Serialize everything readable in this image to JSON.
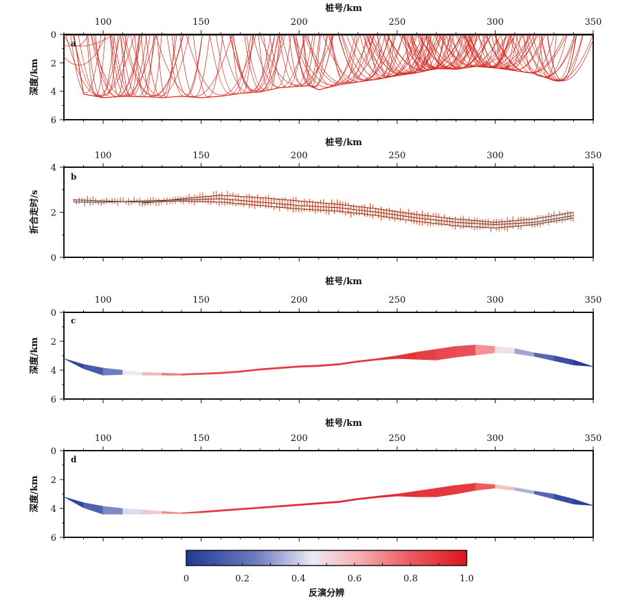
{
  "chart_data": [
    {
      "panel": "a",
      "type": "line",
      "xlabel": "桩号/km",
      "ylabel": "深度/km",
      "xticks": [
        "100",
        "150",
        "200",
        "250",
        "300",
        "350"
      ],
      "yticks": [
        "0",
        "2",
        "4",
        "6"
      ],
      "xlim": [
        80,
        350
      ],
      "ylim": [
        0,
        6
      ],
      "reflector_depth": {
        "x": [
          85,
          90,
          98,
          100,
          110,
          125,
          130,
          140,
          150,
          160,
          170,
          180,
          190,
          200,
          205,
          210,
          220,
          230,
          240,
          250,
          260,
          270,
          280,
          290,
          300,
          310,
          320,
          330,
          333
        ],
        "y": [
          0.0,
          4.2,
          4.4,
          4.45,
          4.35,
          4.4,
          4.45,
          4.35,
          4.45,
          4.35,
          4.15,
          4.05,
          3.75,
          3.65,
          3.6,
          3.9,
          3.55,
          3.35,
          3.15,
          2.9,
          2.7,
          2.4,
          2.45,
          2.25,
          2.35,
          2.55,
          2.75,
          3.25,
          3.3
        ]
      }
    },
    {
      "panel": "b",
      "type": "line",
      "xlabel": "桩号/km",
      "ylabel": "折合走时/s",
      "xticks": [
        "100",
        "150",
        "200",
        "250",
        "300",
        "350"
      ],
      "yticks": [
        "0",
        "2",
        "4"
      ],
      "xlim": [
        80,
        350
      ],
      "ylim": [
        0,
        4
      ],
      "traveltime_curves": [
        {
          "x": [
            85,
            100,
            120,
            140,
            160,
            180,
            200,
            220,
            240,
            260,
            280,
            300,
            320,
            340
          ],
          "y": [
            2.55,
            2.5,
            2.45,
            2.5,
            2.45,
            2.3,
            2.15,
            2.05,
            1.85,
            1.6,
            1.4,
            1.3,
            1.45,
            1.75
          ]
        },
        {
          "x": [
            85,
            100,
            120,
            140,
            160,
            180,
            200,
            220,
            240,
            260,
            280,
            300,
            320,
            340
          ],
          "y": [
            2.45,
            2.45,
            2.5,
            2.55,
            2.6,
            2.45,
            2.3,
            2.2,
            2.0,
            1.75,
            1.55,
            1.45,
            1.55,
            1.85
          ]
        },
        {
          "x": [
            120,
            140,
            160,
            180,
            200,
            220,
            240,
            260,
            280,
            300,
            320,
            340
          ],
          "y": [
            2.4,
            2.6,
            2.75,
            2.65,
            2.5,
            2.35,
            2.15,
            1.9,
            1.7,
            1.55,
            1.7,
            2.0
          ]
        }
      ]
    },
    {
      "panel": "c",
      "type": "area",
      "xlabel": "桩号/km",
      "ylabel": "深度/km",
      "xticks": [
        "100",
        "150",
        "200",
        "250",
        "300",
        "350"
      ],
      "yticks": [
        "0",
        "2",
        "4",
        "6"
      ],
      "xlim": [
        80,
        350
      ],
      "ylim": [
        0,
        6
      ],
      "interface": {
        "x": [
          80,
          90,
          100,
          110,
          120,
          130,
          140,
          150,
          160,
          170,
          180,
          190,
          200,
          210,
          220,
          230,
          240,
          250,
          260,
          270,
          280,
          290,
          300,
          310,
          320,
          330,
          340,
          350
        ],
        "top": [
          3.2,
          3.6,
          3.85,
          4.0,
          4.15,
          4.2,
          4.25,
          4.2,
          4.15,
          4.05,
          3.9,
          3.8,
          3.7,
          3.65,
          3.55,
          3.35,
          3.2,
          3.0,
          2.75,
          2.55,
          2.35,
          2.25,
          2.35,
          2.5,
          2.8,
          3.0,
          3.3,
          3.75
        ],
        "bottom": [
          3.2,
          3.9,
          4.35,
          4.3,
          4.35,
          4.35,
          4.35,
          4.3,
          4.25,
          4.15,
          4.0,
          3.9,
          3.8,
          3.75,
          3.65,
          3.45,
          3.3,
          3.2,
          3.25,
          3.3,
          3.1,
          2.95,
          2.8,
          2.85,
          3.05,
          3.35,
          3.65,
          3.75
        ],
        "resolution": [
          0.0,
          0.1,
          0.15,
          0.35,
          0.55,
          0.65,
          0.8,
          0.85,
          0.85,
          0.88,
          0.9,
          0.9,
          0.9,
          0.92,
          0.9,
          0.92,
          0.9,
          0.92,
          0.9,
          0.85,
          0.85,
          0.8,
          0.55,
          0.4,
          0.25,
          0.1,
          0.05,
          0.0
        ]
      }
    },
    {
      "panel": "d",
      "type": "area",
      "xlabel": "桩号/km",
      "ylabel": "深度/km",
      "xticks": [
        "100",
        "150",
        "200",
        "250",
        "300",
        "350"
      ],
      "yticks": [
        "0",
        "2",
        "4",
        "6"
      ],
      "xlim": [
        80,
        350
      ],
      "ylim": [
        0,
        6
      ],
      "interface": {
        "x": [
          80,
          90,
          100,
          110,
          120,
          130,
          140,
          150,
          160,
          170,
          180,
          190,
          200,
          210,
          220,
          230,
          240,
          250,
          260,
          270,
          280,
          290,
          300,
          310,
          320,
          330,
          340,
          350
        ],
        "top": [
          3.2,
          3.6,
          3.85,
          4.0,
          4.1,
          4.2,
          4.3,
          4.2,
          4.1,
          4.0,
          3.9,
          3.8,
          3.7,
          3.6,
          3.5,
          3.3,
          3.15,
          3.0,
          2.8,
          2.6,
          2.4,
          2.25,
          2.35,
          2.55,
          2.8,
          3.0,
          3.35,
          3.8
        ],
        "bottom": [
          3.2,
          3.95,
          4.4,
          4.4,
          4.4,
          4.35,
          4.35,
          4.3,
          4.2,
          4.1,
          4.0,
          3.9,
          3.8,
          3.7,
          3.6,
          3.4,
          3.25,
          3.15,
          3.2,
          3.2,
          3.0,
          2.75,
          2.6,
          2.75,
          3.0,
          3.35,
          3.7,
          3.8
        ],
        "resolution": [
          0.0,
          0.1,
          0.2,
          0.35,
          0.5,
          0.6,
          0.8,
          0.9,
          0.9,
          0.92,
          0.92,
          0.93,
          0.93,
          0.95,
          0.95,
          0.93,
          0.95,
          0.93,
          0.92,
          0.9,
          0.9,
          0.88,
          0.7,
          0.45,
          0.25,
          0.1,
          0.05,
          0.0
        ]
      }
    }
  ],
  "colorbar": {
    "label": "反演分辨",
    "ticks": [
      "0",
      "0.2",
      "0.4",
      "0.6",
      "0.8",
      "1.0"
    ],
    "range": [
      0,
      1
    ],
    "colors": {
      "low": "#1f3a93",
      "mid": "#ece9f4",
      "high": "#e0141c"
    }
  }
}
